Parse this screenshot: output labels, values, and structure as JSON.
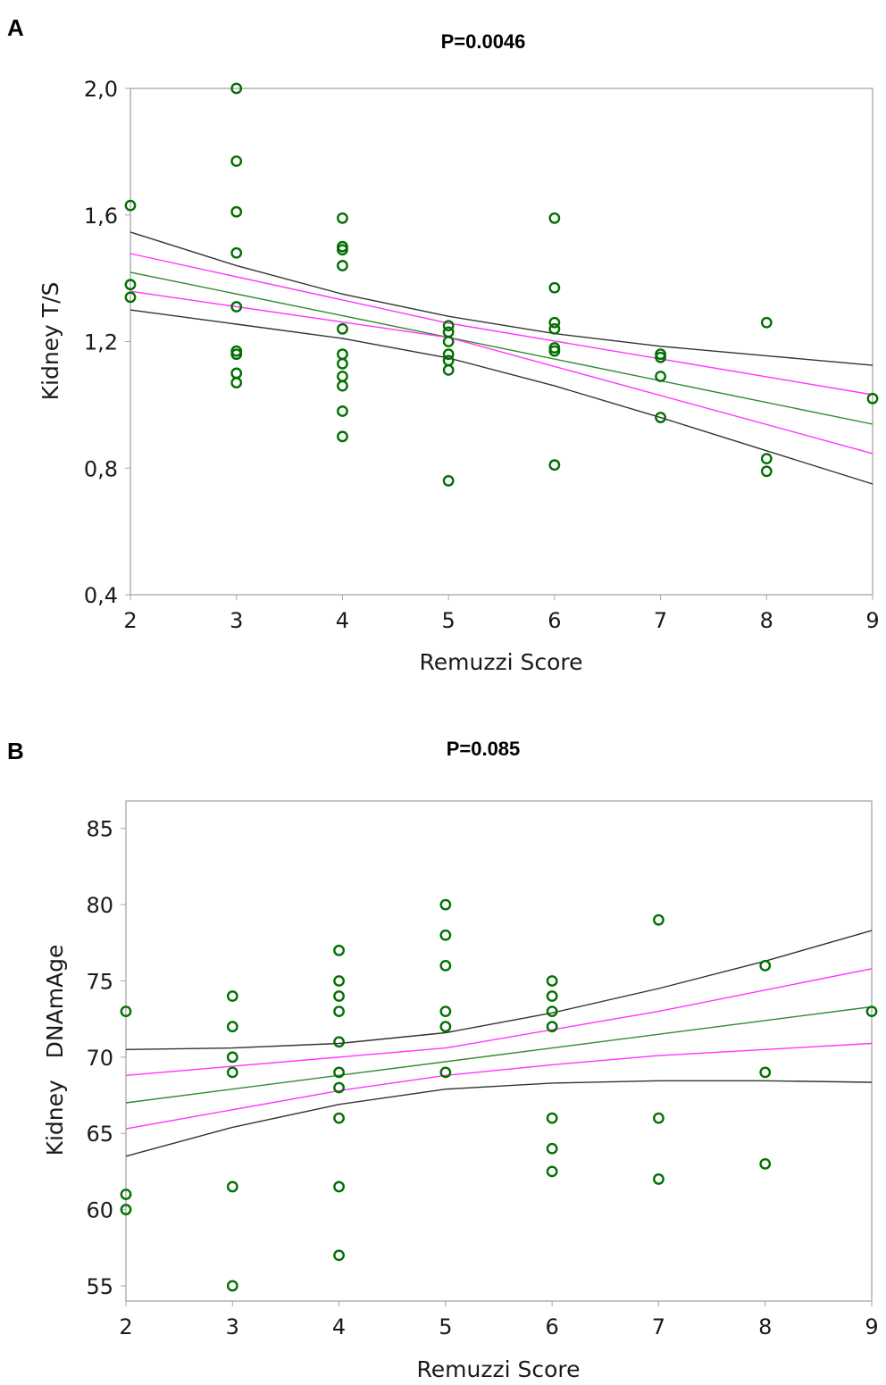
{
  "chart_data": [
    {
      "type": "scatter",
      "panel_label": "A",
      "title": "P=0.0046",
      "xlabel": "Remuzzi Score",
      "ylabel": "Kidney T/S",
      "xlim": [
        2,
        9
      ],
      "ylim": [
        0.4,
        2.0
      ],
      "xticks": [
        "2",
        "3",
        "4",
        "5",
        "6",
        "7",
        "8",
        "9"
      ],
      "yticks": [
        {
          "v": 0.4,
          "label": "0,4"
        },
        {
          "v": 0.8,
          "label": "0,8"
        },
        {
          "v": 1.2,
          "label": "1,2"
        },
        {
          "v": 1.6,
          "label": "1,6"
        },
        {
          "v": 2.0,
          "label": "2,0"
        }
      ],
      "grid": false,
      "points": [
        [
          2,
          1.63
        ],
        [
          2,
          1.38
        ],
        [
          2,
          1.34
        ],
        [
          3,
          2.0
        ],
        [
          3,
          1.77
        ],
        [
          3,
          1.61
        ],
        [
          3,
          1.48
        ],
        [
          3,
          1.31
        ],
        [
          3,
          1.17
        ],
        [
          3,
          1.16
        ],
        [
          3,
          1.1
        ],
        [
          3,
          1.07
        ],
        [
          4,
          1.59
        ],
        [
          4,
          1.5
        ],
        [
          4,
          1.49
        ],
        [
          4,
          1.44
        ],
        [
          4,
          1.24
        ],
        [
          4,
          1.16
        ],
        [
          4,
          1.13
        ],
        [
          4,
          1.09
        ],
        [
          4,
          1.06
        ],
        [
          4,
          0.98
        ],
        [
          4,
          0.9
        ],
        [
          5,
          1.25
        ],
        [
          5,
          1.23
        ],
        [
          5,
          1.2
        ],
        [
          5,
          1.16
        ],
        [
          5,
          1.14
        ],
        [
          5,
          1.11
        ],
        [
          5,
          0.76
        ],
        [
          6,
          1.59
        ],
        [
          6,
          1.37
        ],
        [
          6,
          1.26
        ],
        [
          6,
          1.24
        ],
        [
          6,
          1.18
        ],
        [
          6,
          1.17
        ],
        [
          6,
          0.81
        ],
        [
          7,
          1.16
        ],
        [
          7,
          1.15
        ],
        [
          7,
          1.09
        ],
        [
          7,
          0.96
        ],
        [
          8,
          1.26
        ],
        [
          8,
          0.83
        ],
        [
          8,
          0.79
        ],
        [
          9,
          1.02
        ]
      ],
      "lines": [
        {
          "name": "fit",
          "color": "#2e8b2e",
          "points": [
            [
              2,
              1.419
            ],
            [
              9,
              0.939
            ]
          ]
        },
        {
          "name": "ci-upper",
          "color": "#ff33ff",
          "points": [
            [
              2,
              1.478
            ],
            [
              5,
              1.258
            ],
            [
              9,
              1.032
            ]
          ]
        },
        {
          "name": "ci-lower",
          "color": "#ff33ff",
          "points": [
            [
              2,
              1.359
            ],
            [
              5,
              1.213
            ],
            [
              9,
              0.846
            ]
          ]
        },
        {
          "name": "pi-upper",
          "color": "#333333",
          "points": [
            [
              2,
              1.546
            ],
            [
              3,
              1.44
            ],
            [
              4,
              1.35
            ],
            [
              5,
              1.28
            ],
            [
              6,
              1.225
            ],
            [
              7,
              1.185
            ],
            [
              8,
              1.155
            ],
            [
              9,
              1.125
            ]
          ]
        },
        {
          "name": "pi-lower",
          "color": "#333333",
          "points": [
            [
              2,
              1.3
            ],
            [
              3,
              1.255
            ],
            [
              4,
              1.21
            ],
            [
              5,
              1.148
            ],
            [
              6,
              1.06
            ],
            [
              7,
              0.96
            ],
            [
              8,
              0.855
            ],
            [
              9,
              0.75
            ]
          ]
        }
      ],
      "point_color": "#007000"
    },
    {
      "type": "scatter",
      "panel_label": "B",
      "title": "P=0.085",
      "xlabel": "Remuzzi Score",
      "ylabel": "Kidney   DNAmAge",
      "xlim": [
        2,
        9
      ],
      "ylim": [
        54,
        86.8
      ],
      "xticks": [
        "2",
        "3",
        "4",
        "5",
        "6",
        "7",
        "8",
        "9"
      ],
      "yticks": [
        {
          "v": 55,
          "label": "55"
        },
        {
          "v": 60,
          "label": "60"
        },
        {
          "v": 65,
          "label": "65"
        },
        {
          "v": 70,
          "label": "70"
        },
        {
          "v": 75,
          "label": "75"
        },
        {
          "v": 80,
          "label": "80"
        },
        {
          "v": 85,
          "label": "85"
        }
      ],
      "grid": false,
      "points": [
        [
          2,
          73
        ],
        [
          2,
          61
        ],
        [
          2,
          60
        ],
        [
          3,
          74
        ],
        [
          3,
          72
        ],
        [
          3,
          70
        ],
        [
          3,
          69
        ],
        [
          3,
          61.5
        ],
        [
          3,
          55
        ],
        [
          4,
          77
        ],
        [
          4,
          75
        ],
        [
          4,
          74
        ],
        [
          4,
          73
        ],
        [
          4,
          71
        ],
        [
          4,
          69
        ],
        [
          4,
          68
        ],
        [
          4,
          66
        ],
        [
          4,
          61.5
        ],
        [
          4,
          57
        ],
        [
          5,
          80
        ],
        [
          5,
          78
        ],
        [
          5,
          76
        ],
        [
          5,
          73
        ],
        [
          5,
          72
        ],
        [
          5,
          69
        ],
        [
          6,
          75
        ],
        [
          6,
          74
        ],
        [
          6,
          73
        ],
        [
          6,
          72
        ],
        [
          6,
          66
        ],
        [
          6,
          64
        ],
        [
          6,
          62.5
        ],
        [
          7,
          79
        ],
        [
          7,
          66
        ],
        [
          7,
          62
        ],
        [
          8,
          76
        ],
        [
          8,
          69
        ],
        [
          8,
          63
        ],
        [
          9,
          73
        ]
      ],
      "lines": [
        {
          "name": "fit",
          "color": "#2e8b2e",
          "points": [
            [
              2,
              67.0
            ],
            [
              9,
              73.3
            ]
          ]
        },
        {
          "name": "ci-upper",
          "color": "#ff33ff",
          "points": [
            [
              2,
              68.8
            ],
            [
              5,
              70.6
            ],
            [
              7,
              73.0
            ],
            [
              9,
              75.8
            ]
          ]
        },
        {
          "name": "ci-lower",
          "color": "#ff33ff",
          "points": [
            [
              2,
              65.3
            ],
            [
              4,
              67.8
            ],
            [
              5,
              68.8
            ],
            [
              6,
              69.5
            ],
            [
              7,
              70.1
            ],
            [
              9,
              70.9
            ]
          ]
        },
        {
          "name": "pi-upper",
          "color": "#333333",
          "points": [
            [
              2,
              70.5
            ],
            [
              3,
              70.6
            ],
            [
              4,
              70.9
            ],
            [
              5,
              71.6
            ],
            [
              6,
              72.9
            ],
            [
              7,
              74.5
            ],
            [
              8,
              76.3
            ],
            [
              9,
              78.3
            ]
          ]
        },
        {
          "name": "pi-lower",
          "color": "#333333",
          "points": [
            [
              2,
              63.5
            ],
            [
              3,
              65.4
            ],
            [
              4,
              66.9
            ],
            [
              5,
              67.9
            ],
            [
              6,
              68.3
            ],
            [
              7,
              68.45
            ],
            [
              8,
              68.45
            ],
            [
              9,
              68.35
            ]
          ]
        }
      ],
      "point_color": "#007000"
    }
  ]
}
